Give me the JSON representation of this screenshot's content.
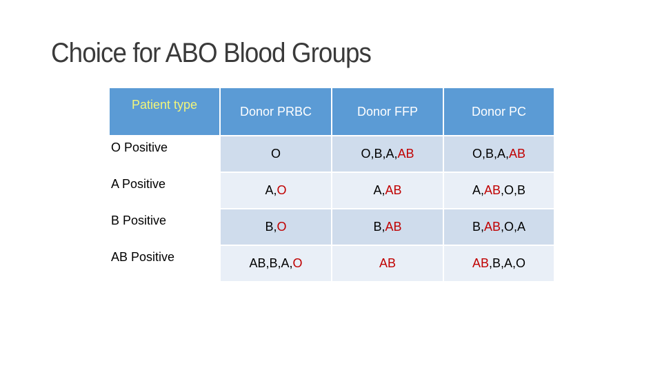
{
  "title": "Choice for ABO Blood Groups",
  "colors": {
    "header_bg": "#5b9bd5",
    "header_text": "#ffffff",
    "patient_header_text": "#f2f57a",
    "row_band_dark": "#cfdcec",
    "row_band_light": "#e9eff7",
    "highlight_red": "#c00000"
  },
  "table": {
    "headers": {
      "patient": "Patient type",
      "prbc": "Donor PRBC",
      "ffp": "Donor FFP",
      "pc": "Donor PC"
    },
    "rows": [
      {
        "patient": "O Positive",
        "prbc": [
          {
            "t": "O",
            "red": false
          }
        ],
        "ffp": [
          {
            "t": "O,B,A,",
            "red": false
          },
          {
            "t": "AB",
            "red": true
          }
        ],
        "pc": [
          {
            "t": "O,B,A,",
            "red": false
          },
          {
            "t": "AB",
            "red": true
          }
        ]
      },
      {
        "patient": "A Positive",
        "prbc": [
          {
            "t": "A,",
            "red": false
          },
          {
            "t": "O",
            "red": true
          }
        ],
        "ffp": [
          {
            "t": "A,",
            "red": false
          },
          {
            "t": "AB",
            "red": true
          }
        ],
        "pc": [
          {
            "t": "A,",
            "red": false
          },
          {
            "t": "AB",
            "red": true
          },
          {
            "t": ",O,B",
            "red": false
          }
        ]
      },
      {
        "patient": "B Positive",
        "prbc": [
          {
            "t": "B,",
            "red": false
          },
          {
            "t": "O",
            "red": true
          }
        ],
        "ffp": [
          {
            "t": "B,",
            "red": false
          },
          {
            "t": "AB",
            "red": true
          }
        ],
        "pc": [
          {
            "t": "B,",
            "red": false
          },
          {
            "t": "AB",
            "red": true
          },
          {
            "t": ",O,A",
            "red": false
          }
        ]
      },
      {
        "patient": "AB Positive",
        "prbc": [
          {
            "t": "AB,B,A,",
            "red": false
          },
          {
            "t": "O",
            "red": true
          }
        ],
        "ffp": [
          {
            "t": "AB",
            "red": true
          }
        ],
        "pc": [
          {
            "t": "AB",
            "red": true
          },
          {
            "t": ",B,A,O",
            "red": false
          }
        ]
      }
    ]
  }
}
